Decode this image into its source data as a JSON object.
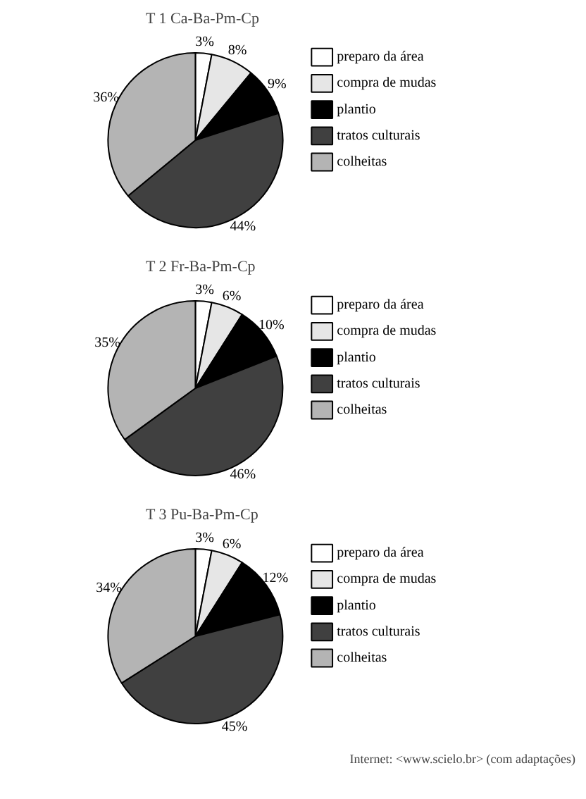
{
  "chart_data": [
    {
      "type": "pie",
      "title": "T 1 Ca-Ba-Pm-Cp",
      "categories": [
        "preparo da área",
        "compra de mudas",
        "plantio",
        "tratos culturais",
        "colheitas"
      ],
      "values": [
        3,
        8,
        9,
        44,
        36
      ],
      "value_labels": [
        "3%",
        "8%",
        "9%",
        "44%",
        "36%"
      ],
      "colors": [
        "#ffffff",
        "#e6e6e6",
        "#000000",
        "#404040",
        "#b4b4b4"
      ],
      "legend": "right"
    },
    {
      "type": "pie",
      "title": "T 2 Fr-Ba-Pm-Cp",
      "categories": [
        "preparo da área",
        "compra de mudas",
        "plantio",
        "tratos culturais",
        "colheitas"
      ],
      "values": [
        3,
        6,
        10,
        46,
        35
      ],
      "value_labels": [
        "3%",
        "6%",
        "10%",
        "46%",
        "35%"
      ],
      "colors": [
        "#ffffff",
        "#e6e6e6",
        "#000000",
        "#404040",
        "#b4b4b4"
      ],
      "legend": "right"
    },
    {
      "type": "pie",
      "title": "T 3 Pu-Ba-Pm-Cp",
      "categories": [
        "preparo da área",
        "compra de mudas",
        "plantio",
        "tratos culturais",
        "colheitas"
      ],
      "values": [
        3,
        6,
        12,
        45,
        34
      ],
      "value_labels": [
        "3%",
        "6%",
        "12%",
        "45%",
        "34%"
      ],
      "colors": [
        "#ffffff",
        "#e6e6e6",
        "#000000",
        "#404040",
        "#b4b4b4"
      ],
      "legend": "right",
      "annotations": [
        "Internet: <www.scielo.br> (com adaptações)"
      ]
    }
  ]
}
